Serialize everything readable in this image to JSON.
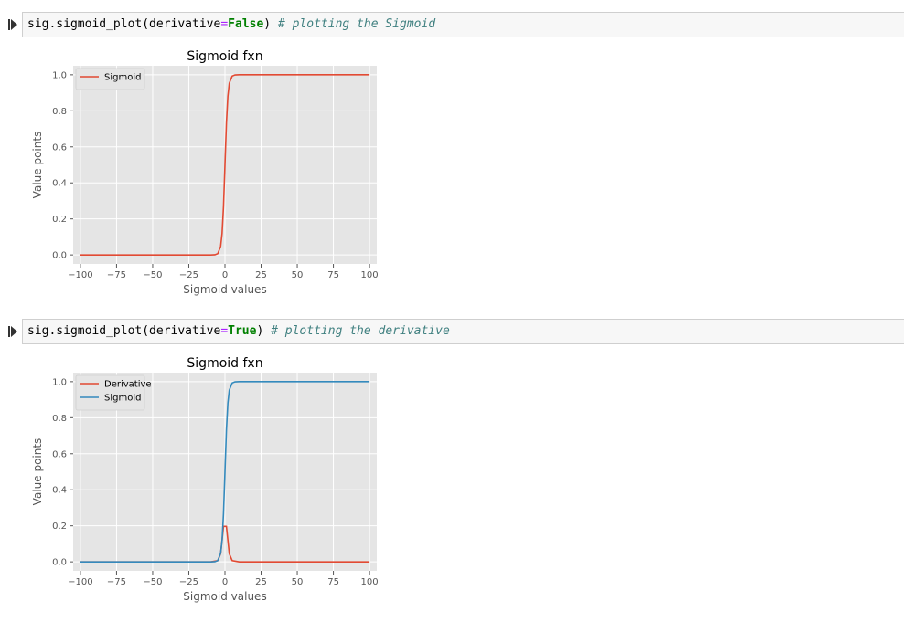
{
  "cells": [
    {
      "code": {
        "prefix": "sig.sigmoid_plot(derivative",
        "op": "=",
        "keyword": "False",
        "suffix": ") ",
        "comment": "# plotting the Sigmoid"
      }
    },
    {
      "code": {
        "prefix": "sig.sigmoid_plot(derivative",
        "op": "=",
        "keyword": "True",
        "suffix": ") ",
        "comment": "# plotting the derivative"
      }
    }
  ],
  "chart_data": [
    {
      "type": "line",
      "title": "Sigmoid fxn",
      "xlabel": "Sigmoid values",
      "ylabel": "Value points",
      "xlim": [
        -105,
        105
      ],
      "ylim": [
        -0.05,
        1.05
      ],
      "xticks": [
        "−100",
        "−75",
        "−50",
        "−25",
        "0",
        "25",
        "50",
        "75",
        "100"
      ],
      "xtick_values": [
        -100,
        -75,
        -50,
        -25,
        0,
        25,
        50,
        75,
        100
      ],
      "yticks": [
        "0.0",
        "0.2",
        "0.4",
        "0.6",
        "0.8",
        "1.0"
      ],
      "ytick_values": [
        0,
        0.2,
        0.4,
        0.6,
        0.8,
        1.0
      ],
      "grid": true,
      "legend_position": "top-left",
      "series": [
        {
          "name": "Sigmoid",
          "color": "#e24a33",
          "x": [
            -100,
            -10,
            -7,
            -5,
            -3,
            -2,
            -1,
            0,
            1,
            2,
            3,
            5,
            7,
            10,
            100
          ],
          "y": [
            0.0,
            0.0,
            0.001,
            0.007,
            0.047,
            0.119,
            0.269,
            0.5,
            0.731,
            0.881,
            0.953,
            0.993,
            0.999,
            1.0,
            1.0
          ]
        }
      ]
    },
    {
      "type": "line",
      "title": "Sigmoid fxn",
      "xlabel": "Sigmoid values",
      "ylabel": "Value points",
      "xlim": [
        -105,
        105
      ],
      "ylim": [
        -0.05,
        1.05
      ],
      "xticks": [
        "−100",
        "−75",
        "−50",
        "−25",
        "0",
        "25",
        "50",
        "75",
        "100"
      ],
      "xtick_values": [
        -100,
        -75,
        -50,
        -25,
        0,
        25,
        50,
        75,
        100
      ],
      "yticks": [
        "0.0",
        "0.2",
        "0.4",
        "0.6",
        "0.8",
        "1.0"
      ],
      "ytick_values": [
        0,
        0.2,
        0.4,
        0.6,
        0.8,
        1.0
      ],
      "grid": true,
      "legend_position": "top-left",
      "series": [
        {
          "name": "Derivative",
          "color": "#e24a33",
          "x": [
            -100,
            -10,
            -5,
            -3,
            -1,
            1,
            3,
            5,
            10,
            100
          ],
          "y": [
            0.0,
            0.0,
            0.007,
            0.045,
            0.197,
            0.197,
            0.045,
            0.007,
            0.0,
            0.0
          ]
        },
        {
          "name": "Sigmoid",
          "color": "#348abd",
          "x": [
            -100,
            -10,
            -7,
            -5,
            -3,
            -2,
            -1,
            0,
            1,
            2,
            3,
            5,
            7,
            10,
            100
          ],
          "y": [
            0.0,
            0.0,
            0.001,
            0.007,
            0.047,
            0.119,
            0.269,
            0.5,
            0.731,
            0.881,
            0.953,
            0.993,
            0.999,
            1.0,
            1.0
          ]
        }
      ]
    }
  ]
}
